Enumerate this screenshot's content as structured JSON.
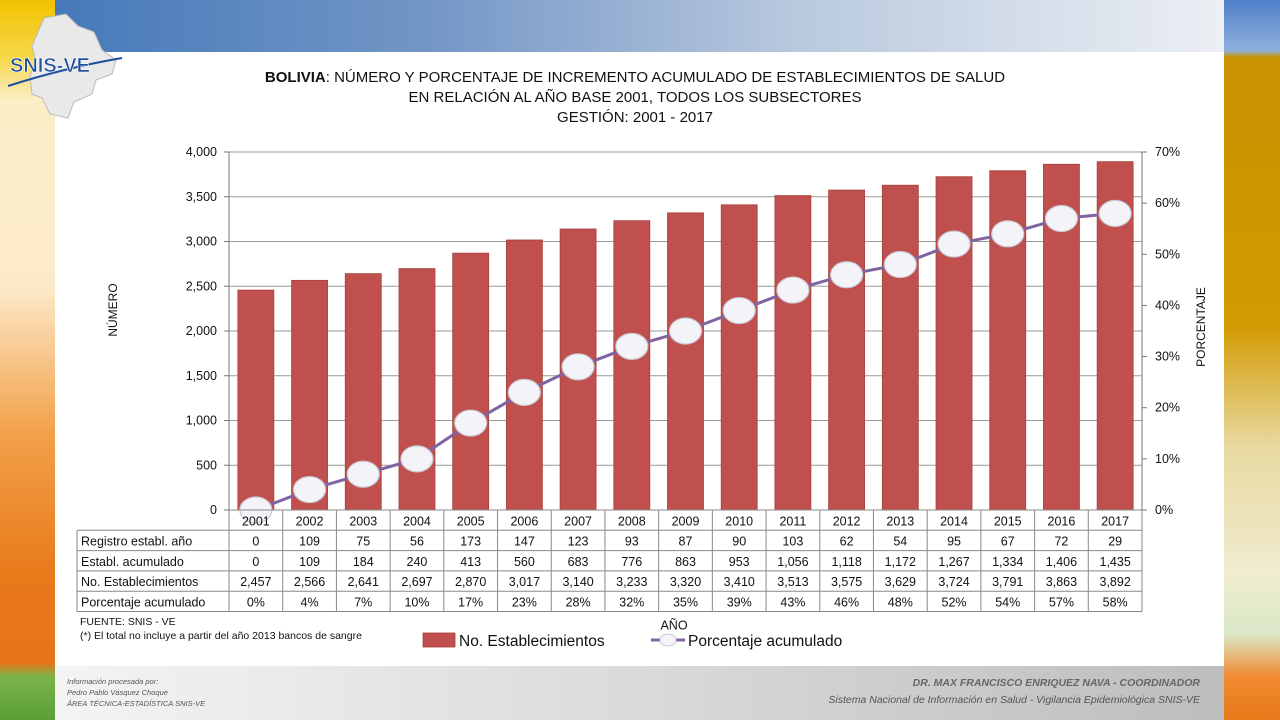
{
  "logo": {
    "text": "SNIS-VE"
  },
  "title": {
    "country": "BOLIVIA",
    "line1_rest": ": NÚMERO Y PORCENTAJE DE INCREMENTO ACUMULADO DE ESTABLECIMIENTOS DE SALUD",
    "line2": "EN RELACIÓN AL AÑO BASE 2001, TODOS LOS SUBSECTORES",
    "line3": "GESTIÓN: 2001 - 2017"
  },
  "footer": {
    "left1": "Información procesada por:",
    "left2": "Pedro Pablo Vásquez Choque",
    "left3": "ÁREA TÉCNICA-ESTADÍSTICA  SNIS-VE",
    "right1": "DR. MAX FRANCISCO ENRIQUEZ NAVA - COORDINADOR",
    "right2": "Sistema Nacional de Información en Salud - Vigilancia Epidemiológica SNIS-VE"
  },
  "source": {
    "line1": "FUENTE: SNIS - VE",
    "line2": "(*) El total no incluye a partir del año 2013 bancos de sangre"
  },
  "chart_data": {
    "type": "bar",
    "title": "BOLIVIA: NÚMERO Y PORCENTAJE DE INCREMENTO ACUMULADO DE ESTABLECIMIENTOS DE SALUD EN RELACIÓN AL AÑO BASE 2001, TODOS LOS SUBSECTORES GESTIÓN: 2001 - 2017",
    "xlabel": "AÑO",
    "ylabel": "NÚMERO",
    "y2label": "PORCENTAJE",
    "ylim": [
      0,
      4000
    ],
    "y2lim": [
      0,
      70
    ],
    "yticks": [
      "0",
      "500",
      "1,000",
      "1,500",
      "2,000",
      "2,500",
      "3,000",
      "3,500",
      "4,000"
    ],
    "y2ticks": [
      "0%",
      "10%",
      "20%",
      "30%",
      "40%",
      "50%",
      "60%",
      "70%"
    ],
    "grid": true,
    "legend_position": "bottom",
    "categories": [
      "2001",
      "2002",
      "2003",
      "2004",
      "2005",
      "2006",
      "2007",
      "2008",
      "2009",
      "2010",
      "2011",
      "2012",
      "2013",
      "2014",
      "2015",
      "2016",
      "2017"
    ],
    "series": [
      {
        "name": "No. Establecimientos",
        "type": "bar",
        "axis": "left",
        "color": "#c0504d",
        "values": [
          2457,
          2566,
          2641,
          2697,
          2870,
          3017,
          3140,
          3233,
          3320,
          3410,
          3513,
          3575,
          3629,
          3724,
          3791,
          3863,
          3892
        ]
      },
      {
        "name": "Porcentaje acumulado",
        "type": "line",
        "axis": "right",
        "color": "#8064a2",
        "values": [
          0,
          4,
          7,
          10,
          17,
          23,
          28,
          32,
          35,
          39,
          43,
          46,
          48,
          52,
          54,
          57,
          58
        ]
      }
    ],
    "table": {
      "rows": [
        {
          "label": "Registro establ. año",
          "values": [
            "0",
            "109",
            "75",
            "56",
            "173",
            "147",
            "123",
            "93",
            "87",
            "90",
            "103",
            "62",
            "54",
            "95",
            "67",
            "72",
            "29"
          ]
        },
        {
          "label": "Establ. acumulado",
          "values": [
            "0",
            "109",
            "184",
            "240",
            "413",
            "560",
            "683",
            "776",
            "863",
            "953",
            "1,056",
            "1,118",
            "1,172",
            "1,267",
            "1,334",
            "1,406",
            "1,435"
          ]
        },
        {
          "label": "No. Establecimientos",
          "values": [
            "2,457",
            "2,566",
            "2,641",
            "2,697",
            "2,870",
            "3,017",
            "3,140",
            "3,233",
            "3,320",
            "3,410",
            "3,513",
            "3,575",
            "3,629",
            "3,724",
            "3,791",
            "3,863",
            "3,892"
          ]
        },
        {
          "label": "Porcentaje acumulado",
          "values": [
            "0%",
            "4%",
            "7%",
            "10%",
            "17%",
            "23%",
            "28%",
            "32%",
            "35%",
            "39%",
            "43%",
            "46%",
            "48%",
            "52%",
            "54%",
            "57%",
            "58%"
          ]
        }
      ]
    }
  }
}
